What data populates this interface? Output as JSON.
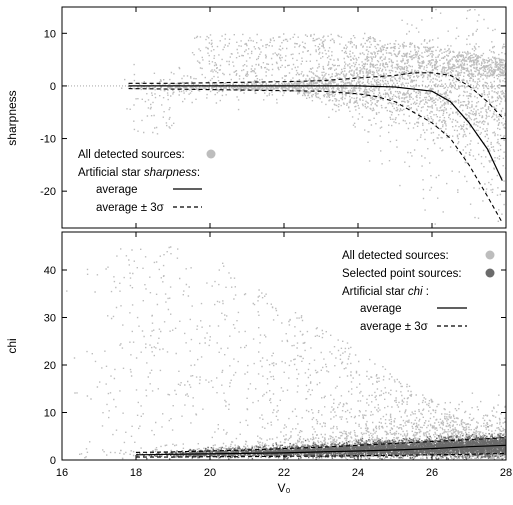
{
  "chart_data": [
    {
      "type": "scatter",
      "panel": "top",
      "xlabel": "",
      "ylabel": "sharpness",
      "xlim": [
        16,
        28
      ],
      "ylim": [
        -27,
        15
      ],
      "yticks": [
        "10",
        "0",
        "-10",
        "-20"
      ],
      "yticks_values": [
        10,
        0,
        -10,
        -20
      ],
      "xticks_values": [
        16,
        18,
        20,
        22,
        24,
        26,
        28
      ],
      "grid": false,
      "legend_placement": "bottom-left",
      "legend": {
        "detected_label": "All detected sources:",
        "artificial_prefix": "Artificial star ",
        "artificial_quantity": "sharpness",
        "artificial_suffix": ":",
        "average_label": "average",
        "band_label": "average ± 3σ"
      },
      "colors": {
        "detected": "#bdbdbd",
        "average": "#000000",
        "band": "#000000"
      },
      "series": [
        {
          "name": "average",
          "x": [
            17.8,
            19,
            20,
            21,
            22,
            23,
            24,
            25,
            26,
            26.5,
            27,
            27.5,
            27.9
          ],
          "y": [
            0,
            0,
            0,
            0,
            0,
            0,
            0,
            -0.2,
            -1,
            -3,
            -7,
            -12,
            -18
          ]
        },
        {
          "name": "average + 3σ",
          "x": [
            17.8,
            19,
            20,
            21,
            22,
            23,
            24,
            25,
            25.5,
            26,
            26.5,
            27,
            27.5,
            27.9
          ],
          "y": [
            0.5,
            0.5,
            0.6,
            0.7,
            0.8,
            1,
            1.5,
            2,
            2.5,
            2.5,
            2,
            0,
            -3,
            -6
          ]
        },
        {
          "name": "average - 3σ",
          "x": [
            17.8,
            19,
            20,
            21,
            22,
            23,
            24,
            24.5,
            25,
            26,
            26.5,
            27,
            27.5,
            27.9
          ],
          "y": [
            -0.5,
            -0.6,
            -0.7,
            -0.8,
            -0.9,
            -1,
            -1.5,
            -2,
            -3,
            -7,
            -10,
            -15,
            -21,
            -26
          ]
        }
      ]
    },
    {
      "type": "scatter",
      "panel": "bottom",
      "xlabel": "V₀",
      "ylabel": "chi",
      "xlim": [
        16,
        28
      ],
      "ylim": [
        0,
        48
      ],
      "xticks": [
        "16",
        "18",
        "20",
        "22",
        "24",
        "26",
        "28"
      ],
      "xticks_values": [
        16,
        18,
        20,
        22,
        24,
        26,
        28
      ],
      "yticks": [
        "0",
        "10",
        "20",
        "30",
        "40"
      ],
      "yticks_values": [
        0,
        10,
        20,
        30,
        40
      ],
      "grid": false,
      "legend_placement": "top-right",
      "legend": {
        "detected_label": "All detected sources:",
        "selected_label": "Selected point sources:",
        "artificial_prefix": "Artificial star ",
        "artificial_quantity": "chi",
        "artificial_suffix": " :",
        "average_label": "average",
        "band_label": "average ± 3σ"
      },
      "colors": {
        "detected": "#bdbdbd",
        "selected": "#6b6b6b",
        "average": "#000000",
        "band": "#000000"
      },
      "series": [
        {
          "name": "average",
          "x": [
            18,
            19,
            20,
            21,
            22,
            23,
            24,
            25,
            26,
            27,
            28
          ],
          "y": [
            1.1,
            1.2,
            1.3,
            1.4,
            1.5,
            1.7,
            1.9,
            2.1,
            2.4,
            2.8,
            3.1
          ]
        },
        {
          "name": "average + 3σ",
          "x": [
            18,
            19,
            20,
            21,
            22,
            23,
            24,
            25,
            26,
            27,
            28
          ],
          "y": [
            1.6,
            1.7,
            1.9,
            2.1,
            2.4,
            2.7,
            3.1,
            3.5,
            3.9,
            4.3,
            4.7
          ]
        },
        {
          "name": "average - 3σ",
          "x": [
            18,
            19,
            20,
            21,
            22,
            23,
            24,
            25,
            26,
            27,
            28
          ],
          "y": [
            0.6,
            0.6,
            0.7,
            0.7,
            0.8,
            0.8,
            0.9,
            1.0,
            1.1,
            1.2,
            1.4
          ]
        }
      ]
    }
  ]
}
